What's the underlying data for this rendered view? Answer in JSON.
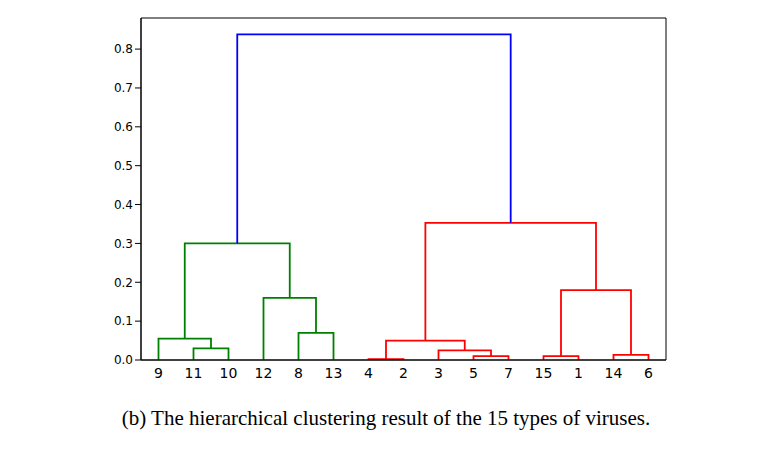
{
  "chart_data": {
    "type": "dendrogram",
    "caption": "(b) The hierarchical clustering result of the 15 types of viruses.",
    "ylim": [
      0,
      0.88
    ],
    "yticks": [
      {
        "value": 0,
        "label": "0.0"
      },
      {
        "value": 0.1,
        "label": "0.1"
      },
      {
        "value": 0.2,
        "label": "0.2"
      },
      {
        "value": 0.3,
        "label": "0.3"
      },
      {
        "value": 0.4,
        "label": "0.4"
      },
      {
        "value": 0.5,
        "label": "0.5"
      },
      {
        "value": 0.6,
        "label": "0.6"
      },
      {
        "value": 0.7,
        "label": "0.7"
      },
      {
        "value": 0.8,
        "label": "0.8"
      }
    ],
    "tree": {
      "height": 0.838,
      "color": "#0000ff",
      "children": [
        {
          "height": 0.3,
          "color": "#008000",
          "children": [
            {
              "height": 0.055,
              "color": "#008000",
              "children": [
                "9",
                {
                  "height": 0.03,
                  "color": "#008000",
                  "children": [
                    "11",
                    "10"
                  ]
                }
              ]
            },
            {
              "height": 0.16,
              "color": "#008000",
              "children": [
                "12",
                {
                  "height": 0.07,
                  "color": "#008000",
                  "children": [
                    "8",
                    "13"
                  ]
                }
              ]
            }
          ]
        },
        {
          "height": 0.353,
          "color": "#ff0000",
          "children": [
            {
              "height": 0.05,
              "color": "#ff0000",
              "children": [
                {
                  "height": 0.002,
                  "color": "#ff0000",
                  "children": [
                    "4",
                    "2"
                  ]
                },
                {
                  "height": 0.025,
                  "color": "#ff0000",
                  "children": [
                    "3",
                    {
                      "height": 0.01,
                      "color": "#ff0000",
                      "children": [
                        "5",
                        "7"
                      ]
                    }
                  ]
                }
              ]
            },
            {
              "height": 0.18,
              "color": "#ff0000",
              "children": [
                {
                  "height": 0.01,
                  "color": "#ff0000",
                  "children": [
                    "15",
                    "1"
                  ]
                },
                {
                  "height": 0.013,
                  "color": "#ff0000",
                  "children": [
                    "14",
                    "6"
                  ]
                }
              ]
            }
          ]
        }
      ]
    }
  }
}
